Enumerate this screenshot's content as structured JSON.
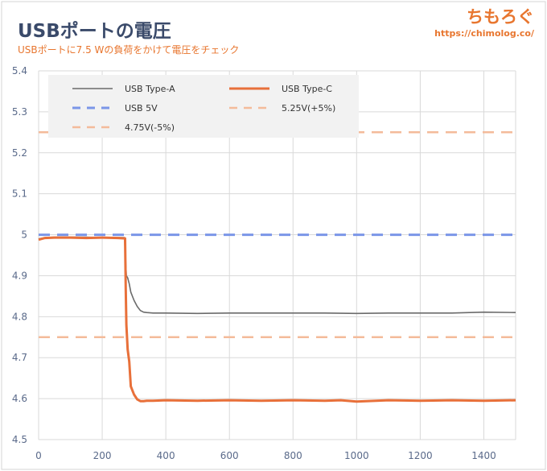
{
  "header": {
    "title": "USBポートの電圧",
    "subtitle": "USBポートに7.5 Wの負荷をかけて電圧をチェック",
    "logo_text": "ちもろぐ",
    "logo_url": "https://chimolog.co/"
  },
  "colors": {
    "title": "#3a4a6a",
    "subtitle": "#e8762f",
    "logo": "#e8762f",
    "type_a": "#6b6b6b",
    "type_c": "#e8703a",
    "usb5v": "#7b96e8",
    "tolerance": "#f4bb9a",
    "grid": "#d9d9d9",
    "legend_bg": "#f2f2f2"
  },
  "chart_data": {
    "type": "line",
    "xlim": [
      0,
      1500
    ],
    "ylim": [
      4.5,
      5.4
    ],
    "xticks": [
      0,
      200,
      400,
      600,
      800,
      1000,
      1200,
      1400
    ],
    "yticks": [
      4.5,
      4.6,
      4.7,
      4.8,
      4.9,
      5,
      5.1,
      5.2,
      5.3,
      5.4
    ],
    "xtick_labels": [
      "0",
      "200",
      "400",
      "600",
      "800",
      "1000",
      "1200",
      "1400"
    ],
    "ytick_labels": [
      "4.5",
      "4.6",
      "4.7",
      "4.8",
      "4.9",
      "5",
      "5.1",
      "5.2",
      "5.3",
      "5.4"
    ],
    "grid": true,
    "legend_position": "top-left",
    "series": [
      {
        "name": "USB Type-A",
        "style": "solid",
        "x": [
          0,
          20,
          50,
          100,
          150,
          200,
          250,
          270,
          276,
          280,
          285,
          290,
          300,
          310,
          320,
          330,
          340,
          360,
          400,
          500,
          600,
          700,
          800,
          900,
          1000,
          1100,
          1200,
          1300,
          1400,
          1500
        ],
        "y": [
          4.99,
          4.993,
          4.994,
          4.994,
          4.994,
          4.993,
          4.993,
          4.993,
          4.9,
          4.895,
          4.88,
          4.86,
          4.84,
          4.825,
          4.815,
          4.811,
          4.81,
          4.809,
          4.809,
          4.808,
          4.809,
          4.809,
          4.809,
          4.809,
          4.808,
          4.809,
          4.809,
          4.809,
          4.811,
          4.81
        ]
      },
      {
        "name": "USB Type-C",
        "style": "solid",
        "x": [
          0,
          20,
          50,
          100,
          150,
          200,
          250,
          272,
          274,
          276,
          280,
          285,
          290,
          295,
          300,
          310,
          320,
          330,
          340,
          360,
          400,
          500,
          600,
          700,
          800,
          900,
          950,
          1000,
          1100,
          1200,
          1300,
          1400,
          1500
        ],
        "y": [
          4.988,
          4.992,
          4.993,
          4.993,
          4.992,
          4.993,
          4.992,
          4.991,
          4.87,
          4.78,
          4.72,
          4.69,
          4.63,
          4.62,
          4.61,
          4.598,
          4.594,
          4.594,
          4.595,
          4.595,
          4.596,
          4.595,
          4.596,
          4.595,
          4.596,
          4.595,
          4.596,
          4.593,
          4.596,
          4.595,
          4.596,
          4.595,
          4.596
        ]
      },
      {
        "name": "USB 5V",
        "style": "dashed",
        "x": [
          0,
          1500
        ],
        "y": [
          5.0,
          5.0
        ]
      },
      {
        "name": "5.25V(+5%)",
        "style": "dashed",
        "x": [
          0,
          1500
        ],
        "y": [
          5.25,
          5.25
        ]
      },
      {
        "name": "4.75V(-5%)",
        "style": "dashed",
        "x": [
          0,
          1500
        ],
        "y": [
          4.75,
          4.75
        ]
      }
    ]
  }
}
